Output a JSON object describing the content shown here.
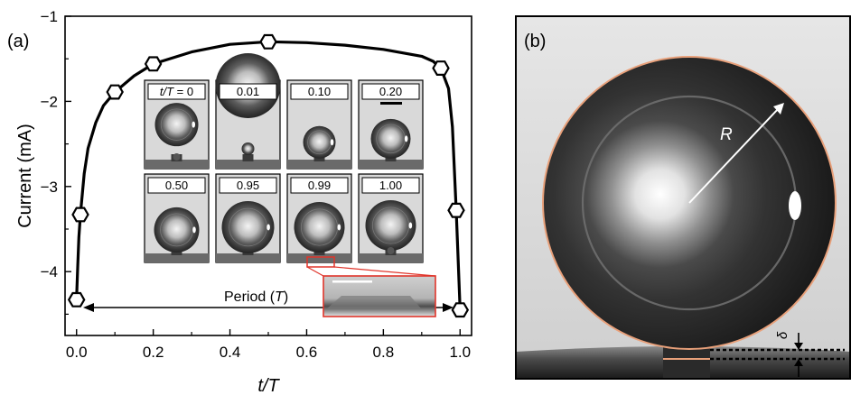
{
  "panel_a": {
    "label": "(a)",
    "period_label_prefix": "Period (",
    "period_label_var": "T",
    "period_label_suffix": ")",
    "inset_labels": [
      {
        "var": "t/T",
        "text": " = 0"
      },
      {
        "var": "",
        "text": "0.01"
      },
      {
        "var": "",
        "text": "0.10"
      },
      {
        "var": "",
        "text": "0.20"
      },
      {
        "var": "",
        "text": "0.50"
      },
      {
        "var": "",
        "text": "0.95"
      },
      {
        "var": "",
        "text": "0.99"
      },
      {
        "var": "",
        "text": "1.00"
      }
    ]
  },
  "panel_b": {
    "label": "(b)",
    "radius_label": "R",
    "delta_label": "δ"
  },
  "colors": {
    "curve": "#000000",
    "marker_fill": "#ffffff",
    "zoom_box": "#e0352b",
    "droplet_outline": "#e8a07a"
  },
  "chart_data": {
    "type": "line",
    "title": "",
    "xlabel": "t/T",
    "ylabel": "Current (mA)",
    "xlim": [
      -0.03,
      1.03
    ],
    "ylim": [
      -4.75,
      -1.0
    ],
    "y_inverted": true,
    "xticks": [
      0.0,
      0.2,
      0.4,
      0.6,
      0.8,
      1.0
    ],
    "xtick_labels": [
      "0.0",
      "0.2",
      "0.4",
      "0.6",
      "0.8",
      "1.0"
    ],
    "yticks": [
      -1,
      -2,
      -3,
      -4
    ],
    "ytick_labels": [
      "−1",
      "−2",
      "−3",
      "−4"
    ],
    "grid": false,
    "series": [
      {
        "name": "",
        "marker": "hexagon",
        "x": [
          0.0,
          0.01,
          0.1,
          0.2,
          0.5,
          0.95,
          0.99,
          1.0
        ],
        "y": [
          -4.33,
          -3.33,
          -1.89,
          -1.56,
          -1.3,
          -1.61,
          -3.28,
          -4.45
        ]
      }
    ],
    "curve": {
      "x": [
        0.0,
        0.003,
        0.006,
        0.01,
        0.02,
        0.03,
        0.05,
        0.07,
        0.1,
        0.15,
        0.2,
        0.3,
        0.4,
        0.5,
        0.6,
        0.7,
        0.8,
        0.9,
        0.93,
        0.95,
        0.97,
        0.98,
        0.99,
        0.995,
        1.0
      ],
      "y": [
        -4.33,
        -3.95,
        -3.6,
        -3.33,
        -2.85,
        -2.55,
        -2.25,
        -2.05,
        -1.89,
        -1.7,
        -1.56,
        -1.42,
        -1.33,
        -1.3,
        -1.31,
        -1.34,
        -1.39,
        -1.47,
        -1.53,
        -1.61,
        -1.85,
        -2.3,
        -3.28,
        -3.85,
        -4.45
      ]
    }
  }
}
